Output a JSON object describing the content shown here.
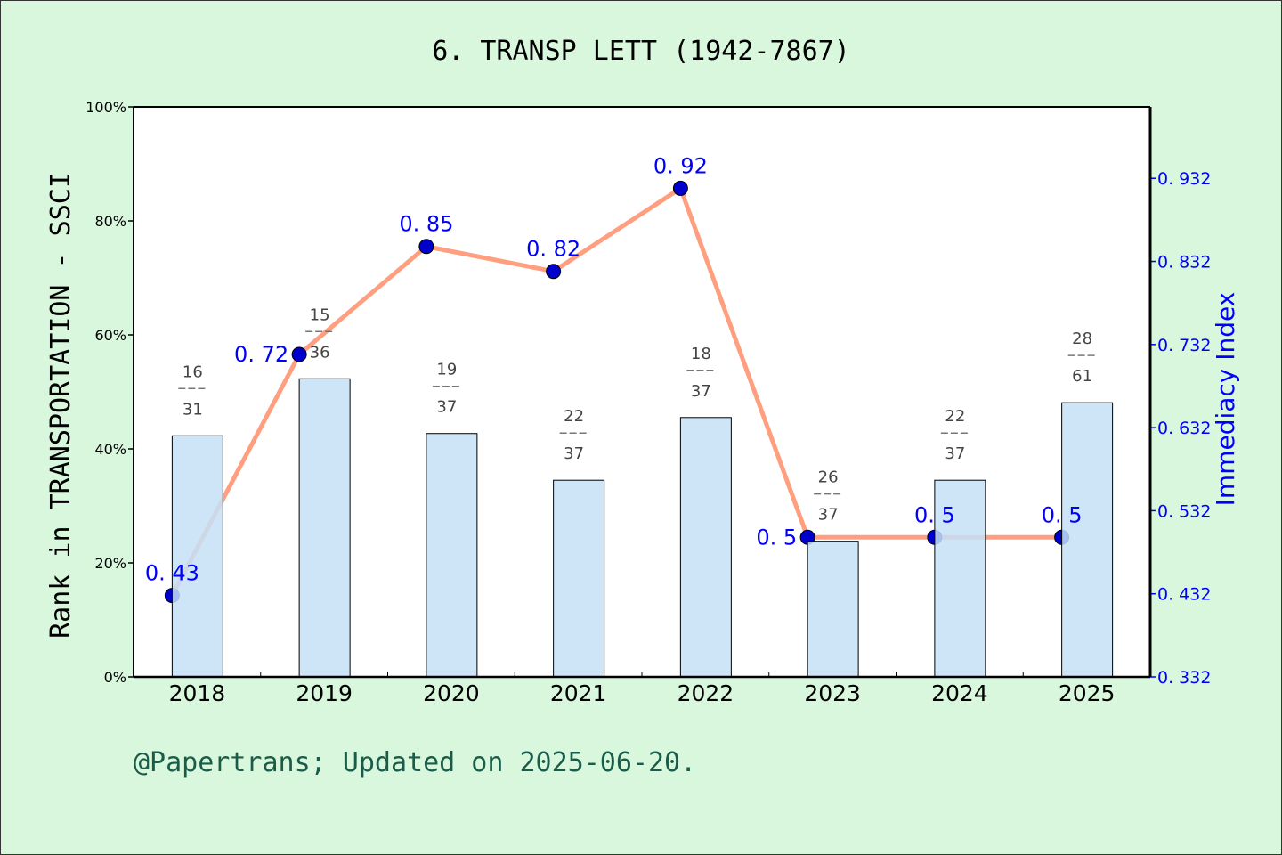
{
  "chart_data": {
    "type": "bar+line",
    "title": "6. TRANSP LETT (1942-7867)",
    "ylabel": "Rank in TRANSPORTATION - SSCI",
    "y2label": "Immediacy Index",
    "categories": [
      "2018",
      "2019",
      "2020",
      "2021",
      "2022",
      "2023",
      "2024",
      "2025"
    ],
    "ylim": [
      0,
      100
    ],
    "yticks": [
      "0%",
      "20%",
      "40%",
      "60%",
      "80%",
      "100%"
    ],
    "y2lim": [
      0.332,
      1.018
    ],
    "y2ticks": [
      "0.332",
      "0.432",
      "0.532",
      "0.632",
      "0.732",
      "0.832",
      "0.932"
    ],
    "bars": {
      "values": [
        42.3,
        52.3,
        42.7,
        34.5,
        45.5,
        23.8,
        34.5,
        48.1
      ],
      "rank": [
        "16",
        "15",
        "19",
        "22",
        "18",
        "26",
        "22",
        "28"
      ],
      "total": [
        "31",
        "36",
        "37",
        "37",
        "37",
        "37",
        "37",
        "61"
      ],
      "color": "#c5e0f7"
    },
    "line": {
      "values": [
        0.43,
        0.72,
        0.85,
        0.82,
        0.92,
        0.5,
        0.5,
        0.5
      ],
      "labels": [
        "0.43",
        "0.72",
        "0.85",
        "0.82",
        "0.92",
        "0.5",
        "0.5",
        "0.5"
      ],
      "color": "#ff9f7f",
      "marker_color": "#0000cc"
    },
    "grid": false
  },
  "footer": "@Papertrans; Updated on 2025-06-20."
}
